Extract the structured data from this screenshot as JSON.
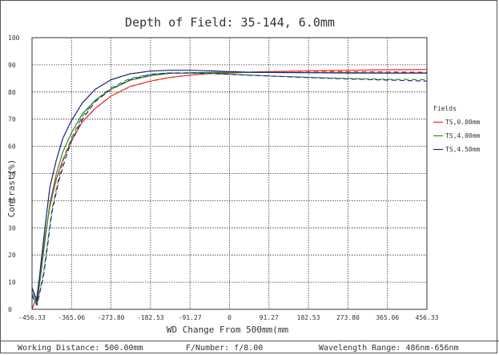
{
  "chart_data": {
    "type": "line",
    "title": "Depth of Field: 35-144, 6.0mm",
    "xlabel": "WD Change From 500mm(mm",
    "ylabel": "Contrast(%)",
    "xlim": [
      -456.33,
      456.33
    ],
    "ylim": [
      0,
      100
    ],
    "x_ticks": [
      "-456.33",
      "-365.06",
      "-273.80",
      "-182.53",
      "-91.27",
      "0",
      "91.27",
      "182.53",
      "273.80",
      "365.06",
      "456.33"
    ],
    "y_ticks": [
      "0",
      "10",
      "20",
      "30",
      "40",
      "50",
      "60",
      "70",
      "80",
      "90",
      "100"
    ],
    "grid": true,
    "legend_title": "Fields",
    "legend_position": "right",
    "series": [
      {
        "name": "TS,0.00mm",
        "color": "#e8302a",
        "style": "solid",
        "x": [
          -456.33,
          -445,
          -435,
          -425,
          -415,
          -400,
          -385,
          -365.06,
          -340,
          -310,
          -273.8,
          -230,
          -182.53,
          -140,
          -91.27,
          -45,
          0,
          45,
          91.27,
          182.53,
          273.8,
          365.06,
          456.33
        ],
        "y": [
          0,
          5,
          16,
          28,
          38,
          48,
          55,
          62,
          69,
          74,
          78.5,
          82,
          84,
          85.3,
          86.2,
          86.8,
          87,
          87.3,
          87.5,
          87.8,
          88,
          88.2,
          88.3
        ]
      },
      {
        "name": "TS,0.00mm",
        "color": "#e8302a",
        "style": "dashed",
        "x": [
          -456.33,
          -445,
          -435,
          -425,
          -415,
          -400,
          -385,
          -365.06,
          -340,
          -310,
          -273.8,
          -230,
          -182.53,
          -140,
          -91.27,
          -45,
          0,
          45,
          91.27,
          182.53,
          273.8,
          365.06,
          456.33
        ],
        "y": [
          0,
          5,
          16,
          28,
          38,
          48,
          55,
          62,
          69,
          74,
          78.5,
          82,
          84,
          85.3,
          86.2,
          86.8,
          87,
          87.3,
          87.5,
          87.6,
          87.5,
          87.4,
          87.3
        ]
      },
      {
        "name": "TS,4.00mm",
        "color": "#2e8b2e",
        "style": "solid",
        "x": [
          -456.33,
          -445,
          -435,
          -425,
          -415,
          -400,
          -385,
          -365.06,
          -340,
          -310,
          -273.8,
          -230,
          -182.53,
          -140,
          -91.27,
          -45,
          0,
          45,
          91.27,
          182.53,
          273.8,
          365.06,
          456.33
        ],
        "y": [
          8,
          2,
          14,
          27,
          39,
          50,
          58,
          65,
          72,
          77,
          81,
          84.3,
          86,
          86.8,
          87.1,
          87.2,
          87.2,
          87.2,
          87.2,
          87.1,
          87.1,
          87,
          87
        ]
      },
      {
        "name": "TS,4.00mm",
        "color": "#2e8b2e",
        "style": "dashed",
        "x": [
          -456.33,
          -445,
          -430,
          -420,
          -410,
          -395,
          -380,
          -365.06,
          -340,
          -310,
          -273.8,
          -230,
          -182.53,
          -140,
          -91.27,
          -45,
          0,
          45,
          91.27,
          182.53,
          273.8,
          365.06,
          456.33
        ],
        "y": [
          6,
          1.5,
          13,
          25,
          37,
          48,
          57,
          63,
          71,
          77,
          81.5,
          85,
          86.5,
          87,
          87,
          86.8,
          86.5,
          86.2,
          85.9,
          85.4,
          85,
          84.7,
          84.5
        ]
      },
      {
        "name": "TS,4.50mm",
        "color": "#1a237e",
        "style": "solid",
        "x": [
          -456.33,
          -445,
          -435,
          -425,
          -415,
          -400,
          -385,
          -365.06,
          -340,
          -310,
          -273.8,
          -230,
          -182.53,
          -140,
          -91.27,
          -45,
          0,
          45,
          91.27,
          182.53,
          273.8,
          365.06,
          456.33
        ],
        "y": [
          8,
          3,
          18,
          32,
          45,
          55,
          63,
          69.5,
          76,
          81,
          84.5,
          86.7,
          87.7,
          88,
          88,
          87.8,
          87.5,
          87.3,
          87.2,
          87.1,
          87,
          87,
          87
        ]
      },
      {
        "name": "TS,4.50mm",
        "color": "#1a237e",
        "style": "dashed",
        "x": [
          -456.33,
          -445,
          -430,
          -420,
          -410,
          -395,
          -380,
          -365.06,
          -340,
          -310,
          -273.8,
          -230,
          -182.53,
          -140,
          -91.27,
          -45,
          0,
          45,
          91.27,
          182.53,
          273.8,
          365.06,
          456.33
        ],
        "y": [
          5,
          1.5,
          12,
          24,
          36,
          47,
          55,
          62,
          70,
          76.5,
          81,
          84.5,
          86.5,
          87,
          87,
          86.8,
          86.5,
          86.2,
          85.9,
          85.3,
          84.8,
          84.4,
          84
        ]
      }
    ],
    "legend_entries": [
      {
        "name": "TS,0.00mm",
        "color": "#e8302a"
      },
      {
        "name": "TS,4.00mm",
        "color": "#2e8b2e"
      },
      {
        "name": "TS,4.50mm",
        "color": "#1a237e"
      }
    ]
  },
  "footer": {
    "working_distance": "Working Distance: 500.00mm",
    "f_number": "F/Number: f/8.00",
    "wavelength_range": "Wavelength Range: 486nm-656nm"
  }
}
